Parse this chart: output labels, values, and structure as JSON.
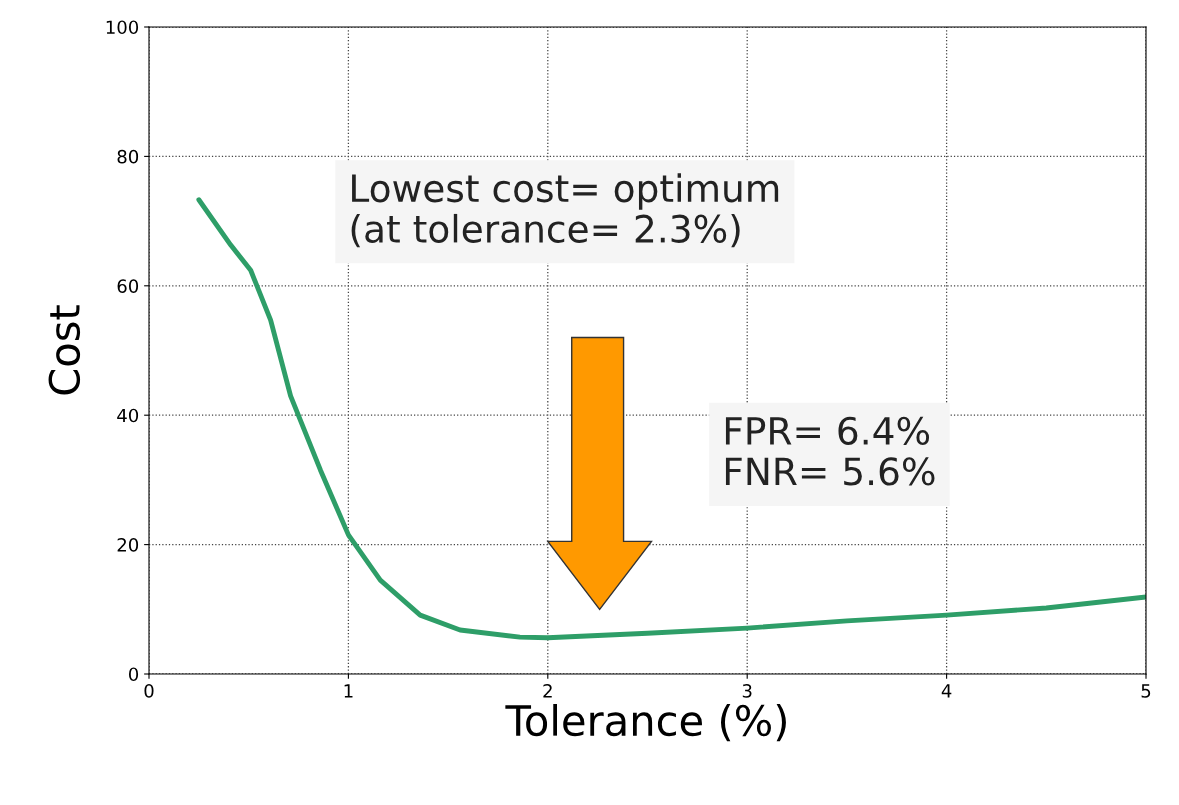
{
  "chart_data": {
    "type": "line",
    "xlabel": "Tolerance (%)",
    "ylabel": "Cost",
    "series": [
      {
        "color": "#2e9e68",
        "x": [
          0.25,
          0.41,
          0.51,
          0.61,
          0.71,
          0.86,
          1.0,
          1.16,
          1.36,
          1.56,
          1.86,
          2.0,
          2.5,
          3.0,
          3.5,
          4.0,
          4.5,
          5.0
        ],
        "values": [
          73.3,
          66.3,
          62.4,
          54.7,
          43,
          31.5,
          21.5,
          14.5,
          9.1,
          6.8,
          5.7,
          5.6,
          6.3,
          7.1,
          8.2,
          9.1,
          10.2,
          11.9
        ]
      }
    ],
    "xlim": [
      0,
      5
    ],
    "xticks": [
      0,
      1,
      2,
      3,
      4,
      5
    ],
    "ylim": [
      0,
      100
    ],
    "yticks": [
      0,
      20,
      40,
      60,
      80,
      100
    ],
    "grid": true,
    "line_style": "solid",
    "marker": "none",
    "annotations": [
      "Lowest cost= optimum\n(at tolerance= 2.3%)",
      "FPR= 6.4%\nFNR= 5.6%"
    ]
  }
}
